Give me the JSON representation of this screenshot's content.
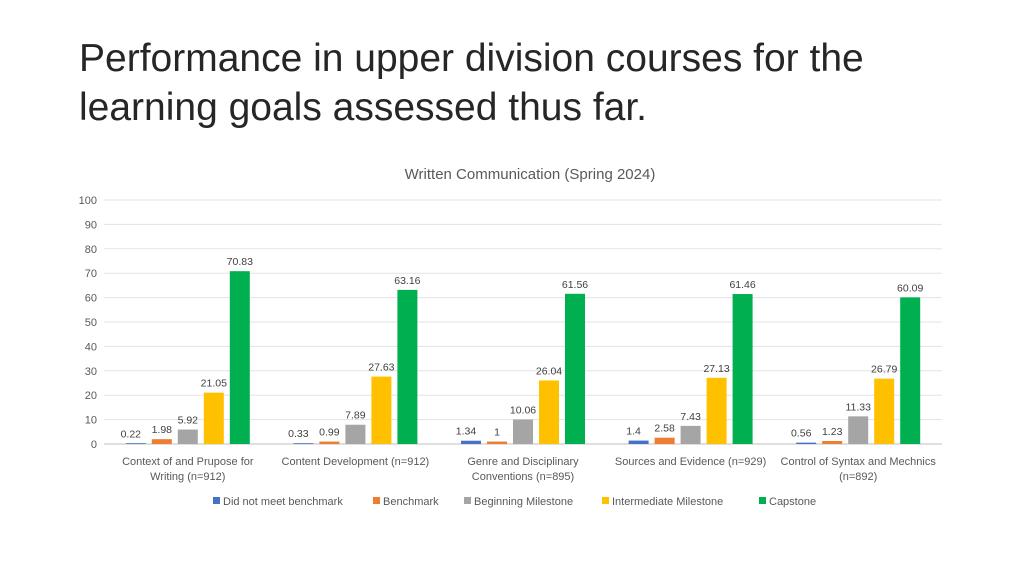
{
  "slide": {
    "title": "Performance in upper division courses for the learning goals assessed thus far."
  },
  "chart_data": {
    "type": "bar",
    "title": "Written Communication (Spring 2024)",
    "categories": [
      [
        "Context of and Prupose for",
        "Writing (n=912)"
      ],
      [
        "Content Development (n=912)"
      ],
      [
        "Genre and Disciplinary",
        "Conventions (n=895)"
      ],
      [
        "Sources and Evidence (n=929)"
      ],
      [
        "Control of Syntax and Mechnics",
        "(n=892)"
      ]
    ],
    "series": [
      {
        "name": "Did not meet benchmark",
        "color": "#4472C4",
        "values": [
          0.22,
          0.33,
          1.34,
          1.4,
          0.56
        ],
        "labels": [
          "0.22",
          "0.33",
          "1.34",
          "1.4",
          "0.56"
        ]
      },
      {
        "name": "Benchmark",
        "color": "#ED7D31",
        "values": [
          1.98,
          0.99,
          1,
          2.58,
          1.23
        ],
        "labels": [
          "1.98",
          "0.99",
          "1",
          "2.58",
          "1.23"
        ]
      },
      {
        "name": "Beginning Milestone",
        "color": "#A5A5A5",
        "values": [
          5.92,
          7.89,
          10.06,
          7.43,
          11.33
        ],
        "labels": [
          "5.92",
          "7.89",
          "10.06",
          "7.43",
          "11.33"
        ]
      },
      {
        "name": "Intermediate Milestone",
        "color": "#FFC000",
        "values": [
          21.05,
          27.63,
          26.04,
          27.13,
          26.79
        ],
        "labels": [
          "21.05",
          "27.63",
          "26.04",
          "27.13",
          "26.79"
        ]
      },
      {
        "name": "Capstone",
        "color": "#00B050",
        "values": [
          70.83,
          63.16,
          61.56,
          61.46,
          60.09
        ],
        "labels": [
          "70.83",
          "63.16",
          "61.56",
          "61.46",
          "60.09"
        ]
      }
    ],
    "yticks": [
      "0",
      "10",
      "20",
      "30",
      "40",
      "50",
      "60",
      "70",
      "80",
      "90",
      "100"
    ],
    "ylim": [
      0,
      100
    ],
    "grid": true,
    "legend": "bottom"
  }
}
